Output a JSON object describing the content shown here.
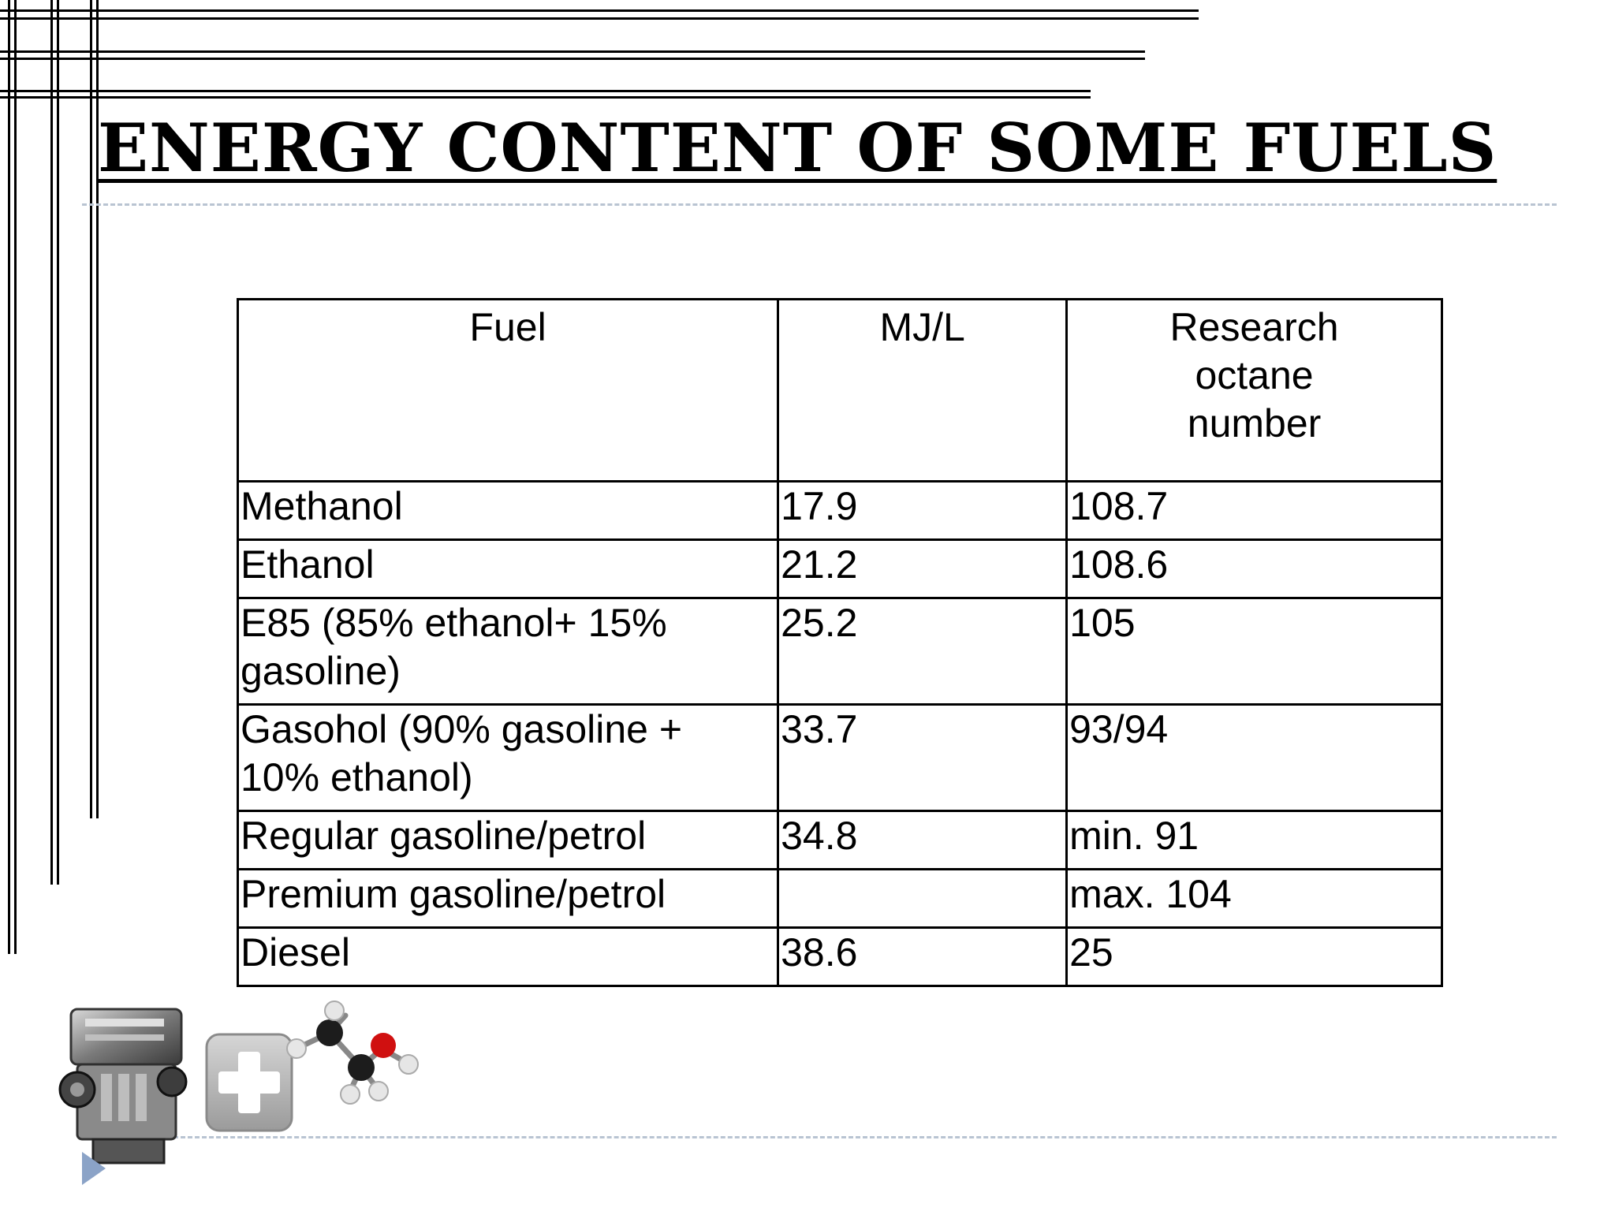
{
  "slide": {
    "title": "ENERGY CONTENT OF SOME FUELS"
  },
  "table": {
    "headers": [
      "Fuel",
      "MJ/L",
      "Research octane number"
    ],
    "header_lines": {
      "research": [
        "Research",
        "octane",
        "number"
      ]
    },
    "rows": [
      {
        "fuel": [
          "Methanol"
        ],
        "mj_per_l": "17.9",
        "octane": "108.7"
      },
      {
        "fuel": [
          "Ethanol"
        ],
        "mj_per_l": "21.2",
        "octane": "108.6"
      },
      {
        "fuel": [
          "E85 (85% ethanol+ 15%",
          "gasoline)"
        ],
        "mj_per_l": "25.2",
        "octane": "105"
      },
      {
        "fuel": [
          "Gasohol (90% gasoline +",
          "10% ethanol)"
        ],
        "mj_per_l": "33.7",
        "octane": "93/94"
      },
      {
        "fuel": [
          "Regular gasoline/petrol"
        ],
        "mj_per_l": "34.8",
        "octane": "min. 91"
      },
      {
        "fuel": [
          "Premium gasoline/petrol"
        ],
        "mj_per_l": "",
        "octane": "max. 104"
      },
      {
        "fuel": [
          "Diesel"
        ],
        "mj_per_l": "38.6",
        "octane": "25"
      }
    ]
  },
  "decorations": {
    "images": [
      "engine-image",
      "plus-icon",
      "ethanol-molecule-image"
    ],
    "nav_icon": "next-slide-arrow-icon",
    "accent_color": "#8ba3c7",
    "rule_color": "#b9c4d2"
  }
}
